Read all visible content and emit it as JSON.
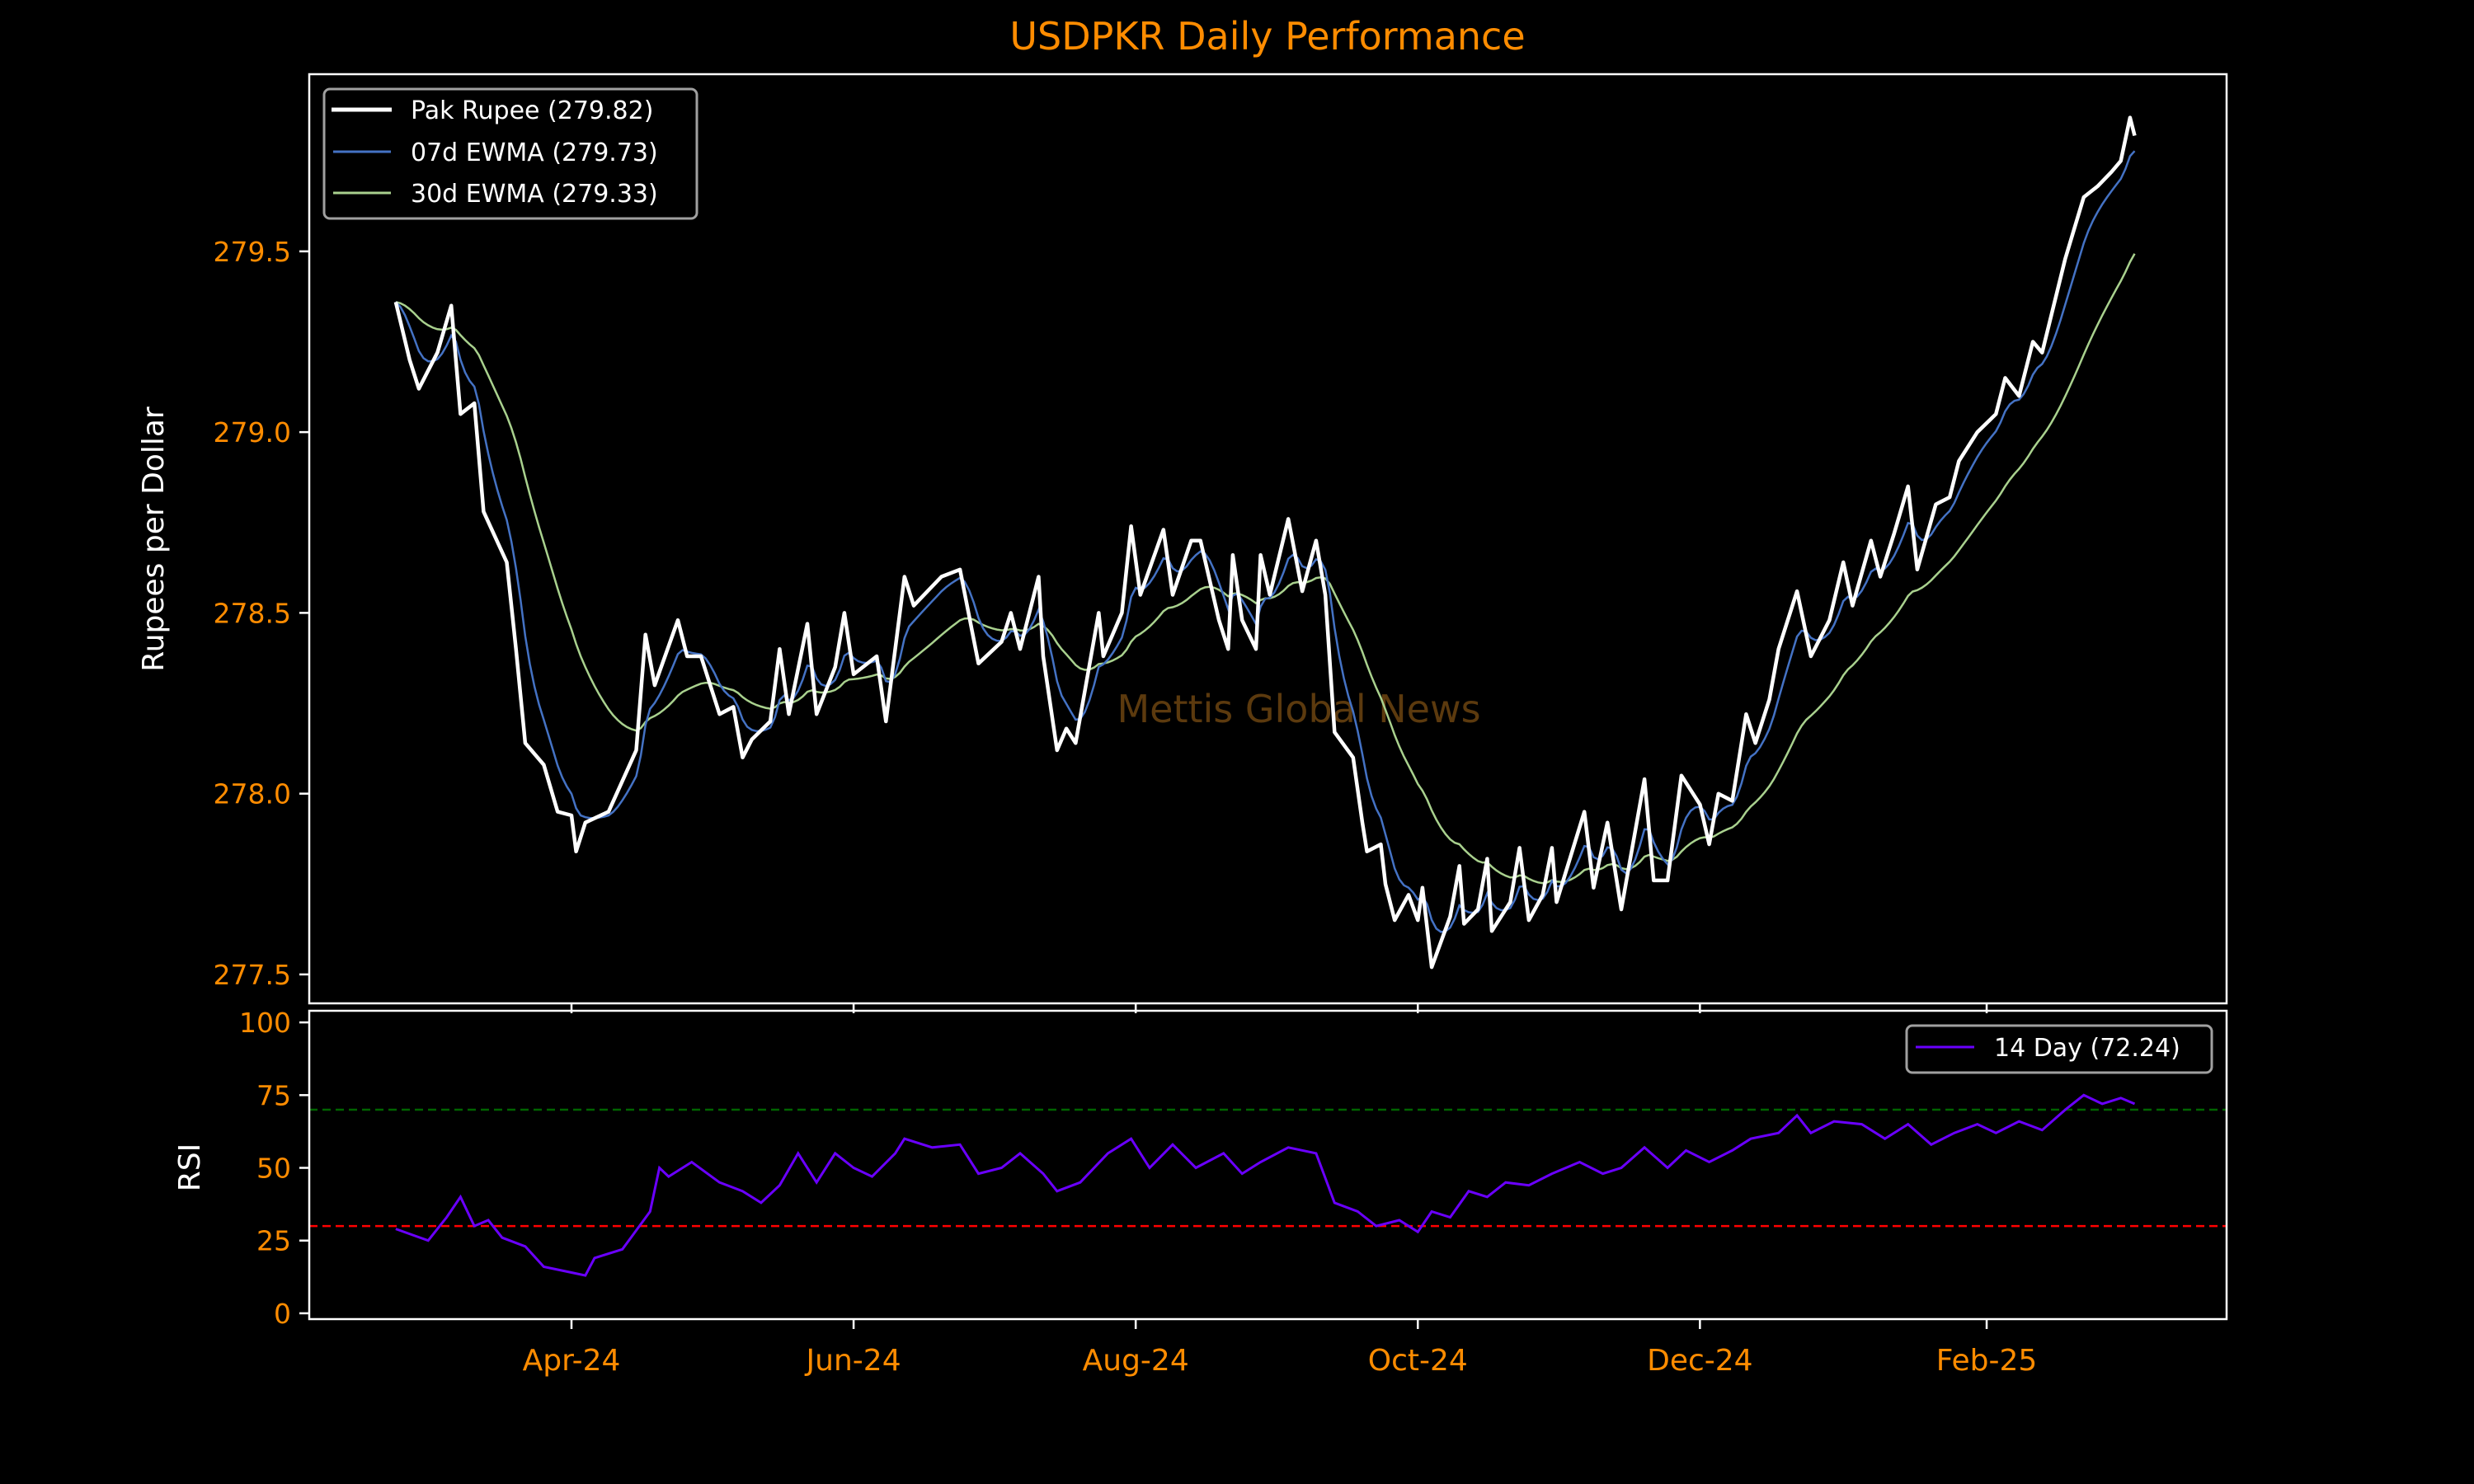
{
  "chart_data": [
    {
      "type": "line",
      "title": "USDPKR Daily Performance",
      "ylabel": "Rupees per Dollar",
      "xlabel": "",
      "ylim": [
        277.42,
        279.99
      ],
      "yticks": [
        277.5,
        278.0,
        278.5,
        279.0,
        279.5
      ],
      "ytick_labels": [
        "277.5",
        "278.0",
        "278.5",
        "279.0",
        "279.5"
      ],
      "xticks": [
        "2024-04-01",
        "2024-06-01",
        "2024-08-01",
        "2024-10-01",
        "2024-12-01",
        "2025-02-01"
      ],
      "xtick_labels": [
        "Apr-24",
        "Jun-24",
        "Aug-24",
        "Oct-24",
        "Dec-24",
        "Feb-25"
      ],
      "legend_position": "top-left",
      "watermark": "Mettis Global News",
      "colors": {
        "price": "#ffffff",
        "ewma7": "#4472c4",
        "ewma30": "#a9d18e",
        "ticks": "#ff8c00",
        "title": "#ff8c00"
      },
      "series": [
        {
          "name": "Pak Rupee (279.82)",
          "key": "price",
          "points": [
            [
              "2024-02-23",
              279.36
            ],
            [
              "2024-02-26",
              279.2
            ],
            [
              "2024-02-28",
              279.12
            ],
            [
              "2024-03-03",
              279.22
            ],
            [
              "2024-03-06",
              279.35
            ],
            [
              "2024-03-08",
              279.05
            ],
            [
              "2024-03-11",
              279.08
            ],
            [
              "2024-03-13",
              278.78
            ],
            [
              "2024-03-18",
              278.64
            ],
            [
              "2024-03-20",
              278.4
            ],
            [
              "2024-03-22",
              278.14
            ],
            [
              "2024-03-26",
              278.08
            ],
            [
              "2024-03-29",
              277.95
            ],
            [
              "2024-04-01",
              277.94
            ],
            [
              "2024-04-02",
              277.84
            ],
            [
              "2024-04-04",
              277.92
            ],
            [
              "2024-04-09",
              277.95
            ],
            [
              "2024-04-15",
              278.12
            ],
            [
              "2024-04-17",
              278.44
            ],
            [
              "2024-04-19",
              278.3
            ],
            [
              "2024-04-24",
              278.48
            ],
            [
              "2024-04-26",
              278.38
            ],
            [
              "2024-04-29",
              278.38
            ],
            [
              "2024-05-03",
              278.22
            ],
            [
              "2024-05-06",
              278.24
            ],
            [
              "2024-05-08",
              278.1
            ],
            [
              "2024-05-10",
              278.15
            ],
            [
              "2024-05-14",
              278.2
            ],
            [
              "2024-05-16",
              278.4
            ],
            [
              "2024-05-18",
              278.22
            ],
            [
              "2024-05-22",
              278.47
            ],
            [
              "2024-05-24",
              278.22
            ],
            [
              "2024-05-28",
              278.35
            ],
            [
              "2024-05-30",
              278.5
            ],
            [
              "2024-06-01",
              278.33
            ],
            [
              "2024-06-06",
              278.38
            ],
            [
              "2024-06-08",
              278.2
            ],
            [
              "2024-06-12",
              278.6
            ],
            [
              "2024-06-14",
              278.52
            ],
            [
              "2024-06-20",
              278.6
            ],
            [
              "2024-06-24",
              278.62
            ],
            [
              "2024-06-28",
              278.36
            ],
            [
              "2024-07-03",
              278.42
            ],
            [
              "2024-07-05",
              278.5
            ],
            [
              "2024-07-07",
              278.4
            ],
            [
              "2024-07-09",
              278.5
            ],
            [
              "2024-07-11",
              278.6
            ],
            [
              "2024-07-12",
              278.38
            ],
            [
              "2024-07-15",
              278.12
            ],
            [
              "2024-07-17",
              278.18
            ],
            [
              "2024-07-19",
              278.14
            ],
            [
              "2024-07-24",
              278.5
            ],
            [
              "2024-07-25",
              278.38
            ],
            [
              "2024-07-29",
              278.5
            ],
            [
              "2024-07-31",
              278.74
            ],
            [
              "2024-08-02",
              278.55
            ],
            [
              "2024-08-07",
              278.73
            ],
            [
              "2024-08-09",
              278.55
            ],
            [
              "2024-08-13",
              278.7
            ],
            [
              "2024-08-15",
              278.7
            ],
            [
              "2024-08-19",
              278.48
            ],
            [
              "2024-08-21",
              278.4
            ],
            [
              "2024-08-22",
              278.66
            ],
            [
              "2024-08-24",
              278.48
            ],
            [
              "2024-08-27",
              278.4
            ],
            [
              "2024-08-28",
              278.66
            ],
            [
              "2024-08-30",
              278.55
            ],
            [
              "2024-09-03",
              278.76
            ],
            [
              "2024-09-06",
              278.56
            ],
            [
              "2024-09-09",
              278.7
            ],
            [
              "2024-09-11",
              278.55
            ],
            [
              "2024-09-13",
              278.17
            ],
            [
              "2024-09-17",
              278.1
            ],
            [
              "2024-09-19",
              277.92
            ],
            [
              "2024-09-20",
              277.84
            ],
            [
              "2024-09-23",
              277.86
            ],
            [
              "2024-09-24",
              277.75
            ],
            [
              "2024-09-26",
              277.65
            ],
            [
              "2024-09-29",
              277.72
            ],
            [
              "2024-10-01",
              277.65
            ],
            [
              "2024-10-02",
              277.74
            ],
            [
              "2024-10-04",
              277.52
            ],
            [
              "2024-10-08",
              277.66
            ],
            [
              "2024-10-10",
              277.8
            ],
            [
              "2024-10-11",
              277.64
            ],
            [
              "2024-10-14",
              277.68
            ],
            [
              "2024-10-16",
              277.82
            ],
            [
              "2024-10-17",
              277.62
            ],
            [
              "2024-10-21",
              277.7
            ],
            [
              "2024-10-23",
              277.85
            ],
            [
              "2024-10-25",
              277.65
            ],
            [
              "2024-10-28",
              277.72
            ],
            [
              "2024-10-30",
              277.85
            ],
            [
              "2024-10-31",
              277.7
            ],
            [
              "2024-11-06",
              277.95
            ],
            [
              "2024-11-08",
              277.74
            ],
            [
              "2024-11-11",
              277.92
            ],
            [
              "2024-11-14",
              277.68
            ],
            [
              "2024-11-19",
              278.04
            ],
            [
              "2024-11-21",
              277.76
            ],
            [
              "2024-11-24",
              277.76
            ],
            [
              "2024-11-27",
              278.05
            ],
            [
              "2024-12-01",
              277.97
            ],
            [
              "2024-12-03",
              277.86
            ],
            [
              "2024-12-05",
              278.0
            ],
            [
              "2024-12-08",
              277.98
            ],
            [
              "2024-12-11",
              278.22
            ],
            [
              "2024-12-13",
              278.14
            ],
            [
              "2024-12-16",
              278.26
            ],
            [
              "2024-12-18",
              278.4
            ],
            [
              "2024-12-22",
              278.56
            ],
            [
              "2024-12-25",
              278.38
            ],
            [
              "2024-12-29",
              278.48
            ],
            [
              "2025-01-01",
              278.64
            ],
            [
              "2025-01-03",
              278.52
            ],
            [
              "2025-01-07",
              278.7
            ],
            [
              "2025-01-09",
              278.6
            ],
            [
              "2025-01-12",
              278.72
            ],
            [
              "2025-01-15",
              278.85
            ],
            [
              "2025-01-17",
              278.62
            ],
            [
              "2025-01-21",
              278.8
            ],
            [
              "2025-01-24",
              278.82
            ],
            [
              "2025-01-26",
              278.92
            ],
            [
              "2025-01-30",
              279.0
            ],
            [
              "2025-02-03",
              279.05
            ],
            [
              "2025-02-05",
              279.15
            ],
            [
              "2025-02-08",
              279.1
            ],
            [
              "2025-02-11",
              279.25
            ],
            [
              "2025-02-13",
              279.22
            ],
            [
              "2025-02-18",
              279.48
            ],
            [
              "2025-02-22",
              279.65
            ],
            [
              "2025-02-25",
              279.68
            ],
            [
              "2025-02-28",
              279.72
            ],
            [
              "2025-03-02",
              279.75
            ],
            [
              "2025-03-04",
              279.87
            ],
            [
              "2025-03-05",
              279.82
            ]
          ]
        },
        {
          "name": "07d EWMA (279.73)",
          "key": "ewma7",
          "span": 7,
          "derived_from": "price"
        },
        {
          "name": "30d EWMA (279.33)",
          "key": "ewma30",
          "span": 30,
          "derived_from": "price"
        }
      ]
    },
    {
      "type": "line",
      "ylabel": "RSI",
      "ylim": [
        -2,
        104
      ],
      "yticks": [
        0,
        25,
        50,
        75,
        100
      ],
      "ytick_labels": [
        "0",
        "25",
        "50",
        "75",
        "100"
      ],
      "legend_position": "top-right",
      "reference_lines": [
        {
          "value": 70,
          "color": "#006400"
        },
        {
          "value": 30,
          "color": "#ff0000"
        }
      ],
      "colors": {
        "rsi": "#6a00ff"
      },
      "series": [
        {
          "name": "14 Day (72.24)",
          "key": "rsi",
          "points": [
            [
              "2024-02-23",
              29
            ],
            [
              "2024-03-01",
              25
            ],
            [
              "2024-03-05",
              33
            ],
            [
              "2024-03-08",
              40
            ],
            [
              "2024-03-11",
              30
            ],
            [
              "2024-03-14",
              32
            ],
            [
              "2024-03-17",
              26
            ],
            [
              "2024-03-22",
              23
            ],
            [
              "2024-03-26",
              16
            ],
            [
              "2024-04-01",
              14
            ],
            [
              "2024-04-04",
              13
            ],
            [
              "2024-04-06",
              19
            ],
            [
              "2024-04-12",
              22
            ],
            [
              "2024-04-18",
              35
            ],
            [
              "2024-04-20",
              50
            ],
            [
              "2024-04-22",
              47
            ],
            [
              "2024-04-27",
              52
            ],
            [
              "2024-05-03",
              45
            ],
            [
              "2024-05-08",
              42
            ],
            [
              "2024-05-12",
              38
            ],
            [
              "2024-05-16",
              44
            ],
            [
              "2024-05-20",
              55
            ],
            [
              "2024-05-24",
              45
            ],
            [
              "2024-05-28",
              55
            ],
            [
              "2024-06-01",
              50
            ],
            [
              "2024-06-05",
              47
            ],
            [
              "2024-06-10",
              55
            ],
            [
              "2024-06-12",
              60
            ],
            [
              "2024-06-18",
              57
            ],
            [
              "2024-06-24",
              58
            ],
            [
              "2024-06-28",
              48
            ],
            [
              "2024-07-03",
              50
            ],
            [
              "2024-07-07",
              55
            ],
            [
              "2024-07-12",
              48
            ],
            [
              "2024-07-15",
              42
            ],
            [
              "2024-07-20",
              45
            ],
            [
              "2024-07-26",
              55
            ],
            [
              "2024-07-31",
              60
            ],
            [
              "2024-08-04",
              50
            ],
            [
              "2024-08-09",
              58
            ],
            [
              "2024-08-14",
              50
            ],
            [
              "2024-08-20",
              55
            ],
            [
              "2024-08-24",
              48
            ],
            [
              "2024-08-28",
              52
            ],
            [
              "2024-09-03",
              57
            ],
            [
              "2024-09-09",
              55
            ],
            [
              "2024-09-13",
              38
            ],
            [
              "2024-09-18",
              35
            ],
            [
              "2024-09-22",
              30
            ],
            [
              "2024-09-27",
              32
            ],
            [
              "2024-10-01",
              28
            ],
            [
              "2024-10-04",
              35
            ],
            [
              "2024-10-08",
              33
            ],
            [
              "2024-10-12",
              42
            ],
            [
              "2024-10-16",
              40
            ],
            [
              "2024-10-20",
              45
            ],
            [
              "2024-10-25",
              44
            ],
            [
              "2024-10-30",
              48
            ],
            [
              "2024-11-05",
              52
            ],
            [
              "2024-11-10",
              48
            ],
            [
              "2024-11-14",
              50
            ],
            [
              "2024-11-19",
              57
            ],
            [
              "2024-11-24",
              50
            ],
            [
              "2024-11-28",
              56
            ],
            [
              "2024-12-03",
              52
            ],
            [
              "2024-12-08",
              56
            ],
            [
              "2024-12-12",
              60
            ],
            [
              "2024-12-18",
              62
            ],
            [
              "2024-12-22",
              68
            ],
            [
              "2024-12-25",
              62
            ],
            [
              "2024-12-30",
              66
            ],
            [
              "2025-01-05",
              65
            ],
            [
              "2025-01-10",
              60
            ],
            [
              "2025-01-15",
              65
            ],
            [
              "2025-01-20",
              58
            ],
            [
              "2025-01-25",
              62
            ],
            [
              "2025-01-30",
              65
            ],
            [
              "2025-02-03",
              62
            ],
            [
              "2025-02-08",
              66
            ],
            [
              "2025-02-13",
              63
            ],
            [
              "2025-02-18",
              70
            ],
            [
              "2025-02-22",
              75
            ],
            [
              "2025-02-26",
              72
            ],
            [
              "2025-03-02",
              74
            ],
            [
              "2025-03-05",
              72
            ]
          ]
        }
      ]
    }
  ]
}
